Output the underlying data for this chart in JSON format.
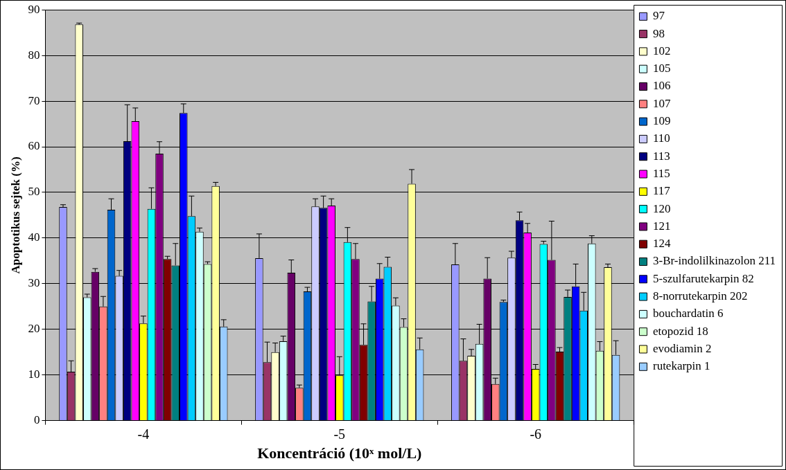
{
  "chart_data": {
    "type": "bar",
    "xlabel": "Koncentráció (10ˣ mol/L)",
    "ylabel": "Apoptotikus sejtek (%)",
    "categories": [
      "-4",
      "-5",
      "-6"
    ],
    "ylim": [
      0,
      90
    ],
    "yticks": [
      0,
      10,
      20,
      30,
      40,
      50,
      60,
      70,
      80,
      90
    ],
    "grid": "y",
    "legend": "right",
    "series": [
      {
        "name": "97",
        "color": "#9999ff",
        "values": [
          46.8,
          35.6,
          34.2
        ],
        "errors": [
          [
            46.8,
            47.3
          ],
          [
            35.6,
            40.9
          ],
          [
            34.2,
            38.8
          ]
        ]
      },
      {
        "name": "98",
        "color": "#993366",
        "values": [
          10.7,
          12.8,
          13.1
        ],
        "errors": [
          [
            10.7,
            13.1
          ],
          [
            12.8,
            17.2
          ],
          [
            13.1,
            17.9
          ]
        ]
      },
      {
        "name": "102",
        "color": "#ffffcc",
        "values": [
          86.8,
          15,
          14.2
        ],
        "errors": [
          [
            86.8,
            87.1
          ],
          [
            15,
            17
          ],
          [
            14.2,
            15.6
          ]
        ]
      },
      {
        "name": "105",
        "color": "#ccffff",
        "values": [
          27,
          17.4,
          16.8
        ],
        "errors": [
          [
            27,
            27.7
          ],
          [
            17.4,
            18.5
          ],
          [
            16.8,
            21.1
          ]
        ]
      },
      {
        "name": "106",
        "color": "#660066",
        "values": [
          32.6,
          32.4,
          31.1
        ],
        "errors": [
          [
            32.6,
            33.3
          ],
          [
            32.4,
            35.2
          ],
          [
            31.1,
            35.7
          ]
        ]
      },
      {
        "name": "107",
        "color": "#ff8080",
        "values": [
          25,
          7.2,
          8
        ],
        "errors": [
          [
            25,
            27.2
          ],
          [
            7.2,
            7.8
          ],
          [
            8,
            9.3
          ]
        ]
      },
      {
        "name": "109",
        "color": "#0066cc",
        "values": [
          46.2,
          28.3,
          26
        ],
        "errors": [
          [
            46.2,
            48.6
          ],
          [
            28.3,
            29.2
          ],
          [
            26,
            26.4
          ]
        ]
      },
      {
        "name": "110",
        "color": "#ccccff",
        "values": [
          31.7,
          46.9,
          35.7
        ],
        "errors": [
          [
            31.7,
            32.9
          ],
          [
            46.9,
            48.6
          ],
          [
            35.7,
            37.1
          ]
        ]
      },
      {
        "name": "113",
        "color": "#000080",
        "values": [
          61.2,
          46.6,
          43.9
        ],
        "errors": [
          [
            61.2,
            69.2
          ],
          [
            46.6,
            49.2
          ],
          [
            43.9,
            45.7
          ]
        ]
      },
      {
        "name": "115",
        "color": "#ff00ff",
        "values": [
          65.6,
          47.1,
          41.2
        ],
        "errors": [
          [
            65.6,
            68.5
          ],
          [
            47.1,
            48.6
          ],
          [
            41.2,
            43.2
          ]
        ]
      },
      {
        "name": "117",
        "color": "#ffff00",
        "values": [
          21.3,
          9.9,
          11.3
        ],
        "errors": [
          [
            21.3,
            22.9
          ],
          [
            9.9,
            14
          ],
          [
            11.3,
            12.3
          ]
        ]
      },
      {
        "name": "120",
        "color": "#00ffff",
        "values": [
          46.4,
          39.1,
          38.7
        ],
        "errors": [
          [
            46.4,
            51
          ],
          [
            39.1,
            42.3
          ],
          [
            38.7,
            39.3
          ]
        ]
      },
      {
        "name": "121",
        "color": "#800080",
        "values": [
          58.5,
          35.4,
          35.2
        ],
        "errors": [
          [
            58.5,
            61.1
          ],
          [
            35.4,
            38.8
          ],
          [
            35.2,
            43.7
          ]
        ]
      },
      {
        "name": "124",
        "color": "#800000",
        "values": [
          35.4,
          16.6,
          15.1
        ],
        "errors": [
          [
            35.4,
            36
          ],
          [
            16.6,
            21.2
          ],
          [
            15.1,
            16
          ]
        ]
      },
      {
        "name": "3-Br-indolilkinazolon 211",
        "color": "#008080",
        "values": [
          34,
          26.1,
          27.1
        ],
        "errors": [
          [
            34,
            38.8
          ],
          [
            26.1,
            29.4
          ],
          [
            27.1,
            28.6
          ]
        ]
      },
      {
        "name": "5-szulfarutekarpin 82",
        "color": "#0000ff",
        "values": [
          67.4,
          31.1,
          29.4
        ],
        "errors": [
          [
            67.4,
            69.4
          ],
          [
            31.1,
            34.4
          ],
          [
            29.4,
            34.3
          ]
        ]
      },
      {
        "name": "8-norrutekarpin 202",
        "color": "#00ccff",
        "values": [
          44.8,
          33.7,
          24.1
        ],
        "errors": [
          [
            44.8,
            49.2
          ],
          [
            33.7,
            35.8
          ],
          [
            24.1,
            28.1
          ]
        ]
      },
      {
        "name": "bouchardatin 6",
        "color": "#ccffff",
        "values": [
          41.4,
          25.2,
          38.8
        ],
        "errors": [
          [
            41.4,
            42.2
          ],
          [
            25.2,
            26.9
          ],
          [
            38.8,
            40.5
          ]
        ]
      },
      {
        "name": "etopozid 18",
        "color": "#ccffcc",
        "values": [
          34.3,
          20.5,
          15.3
        ],
        "errors": [
          [
            34.3,
            34.8
          ],
          [
            20.5,
            22.3
          ],
          [
            15.3,
            17.3
          ]
        ]
      },
      {
        "name": "evodiamin 2",
        "color": "#ffff99",
        "values": [
          51.4,
          51.9,
          33.6
        ],
        "errors": [
          [
            51.4,
            52.2
          ],
          [
            51.9,
            55
          ],
          [
            33.6,
            34.3
          ]
        ]
      },
      {
        "name": "rutekarpin 1",
        "color": "#99ccff",
        "values": [
          20.6,
          15.6,
          14.4
        ],
        "errors": [
          [
            20.6,
            22.1
          ],
          [
            15.6,
            18.1
          ],
          [
            14.4,
            17.5
          ]
        ]
      }
    ]
  }
}
